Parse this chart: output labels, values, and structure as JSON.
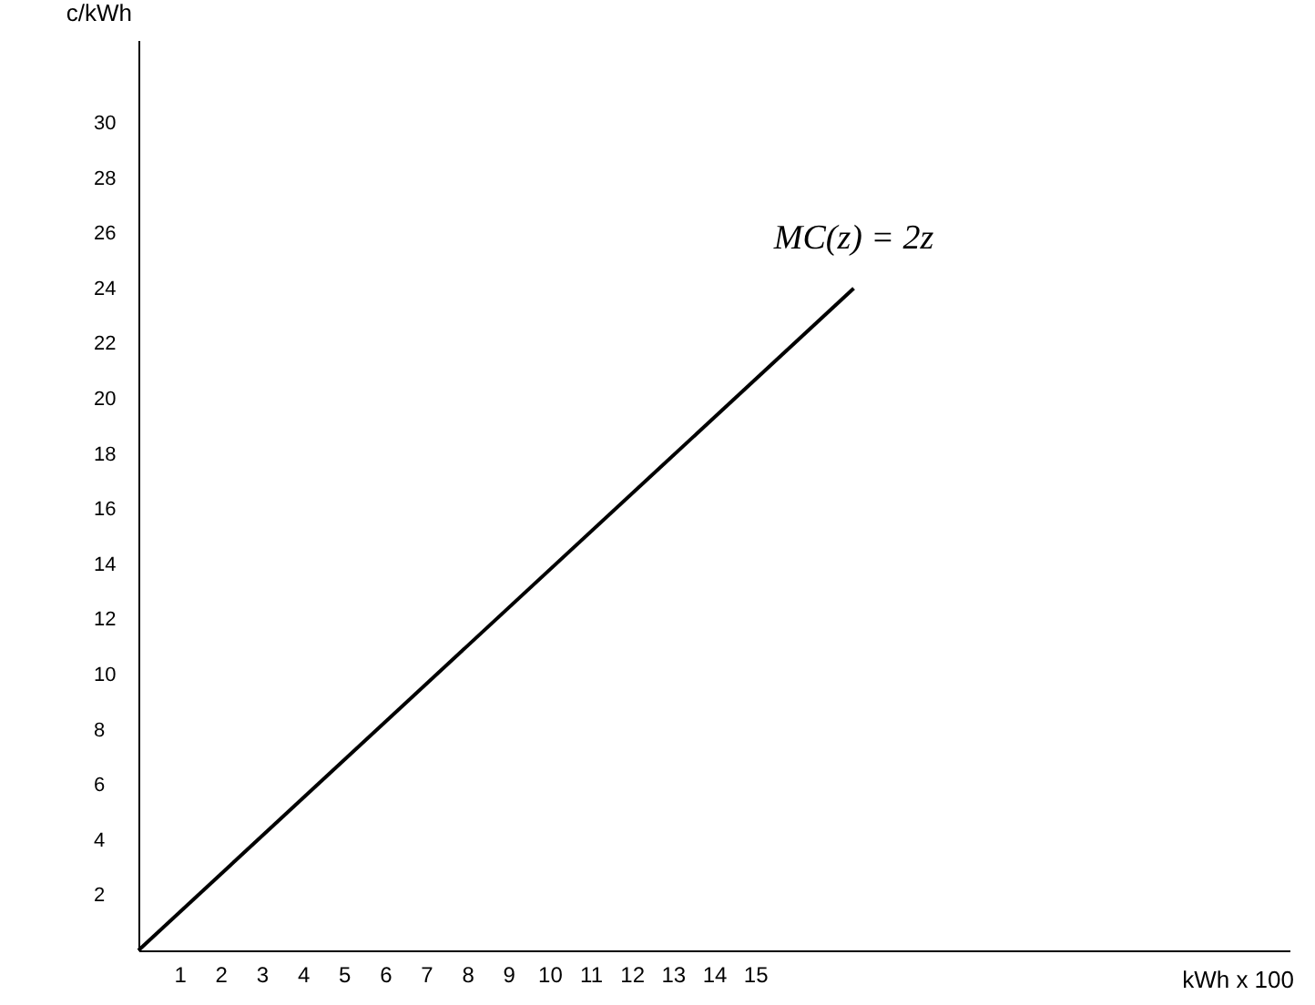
{
  "chart_data": {
    "type": "line",
    "xlabel": "kWh x 100",
    "ylabel": "c/kWh",
    "x": [
      0,
      17.4
    ],
    "series": [
      {
        "color": "#000000",
        "values": [
          0,
          24
        ]
      }
    ],
    "xlim": [
      0,
      28
    ],
    "ylim": [
      0,
      33
    ],
    "xticks": [
      1,
      2,
      3,
      4,
      5,
      6,
      7,
      8,
      9,
      10,
      11,
      12,
      13,
      14,
      15
    ],
    "yticks": [
      2,
      4,
      6,
      8,
      10,
      12,
      14,
      16,
      18,
      20,
      22,
      24,
      26,
      28,
      30
    ],
    "annotations": [
      {
        "text": "MC(z) = 2z",
        "x": 17.4,
        "y": 24
      }
    ],
    "grid": false,
    "marker": "none",
    "line_style": "solid"
  }
}
